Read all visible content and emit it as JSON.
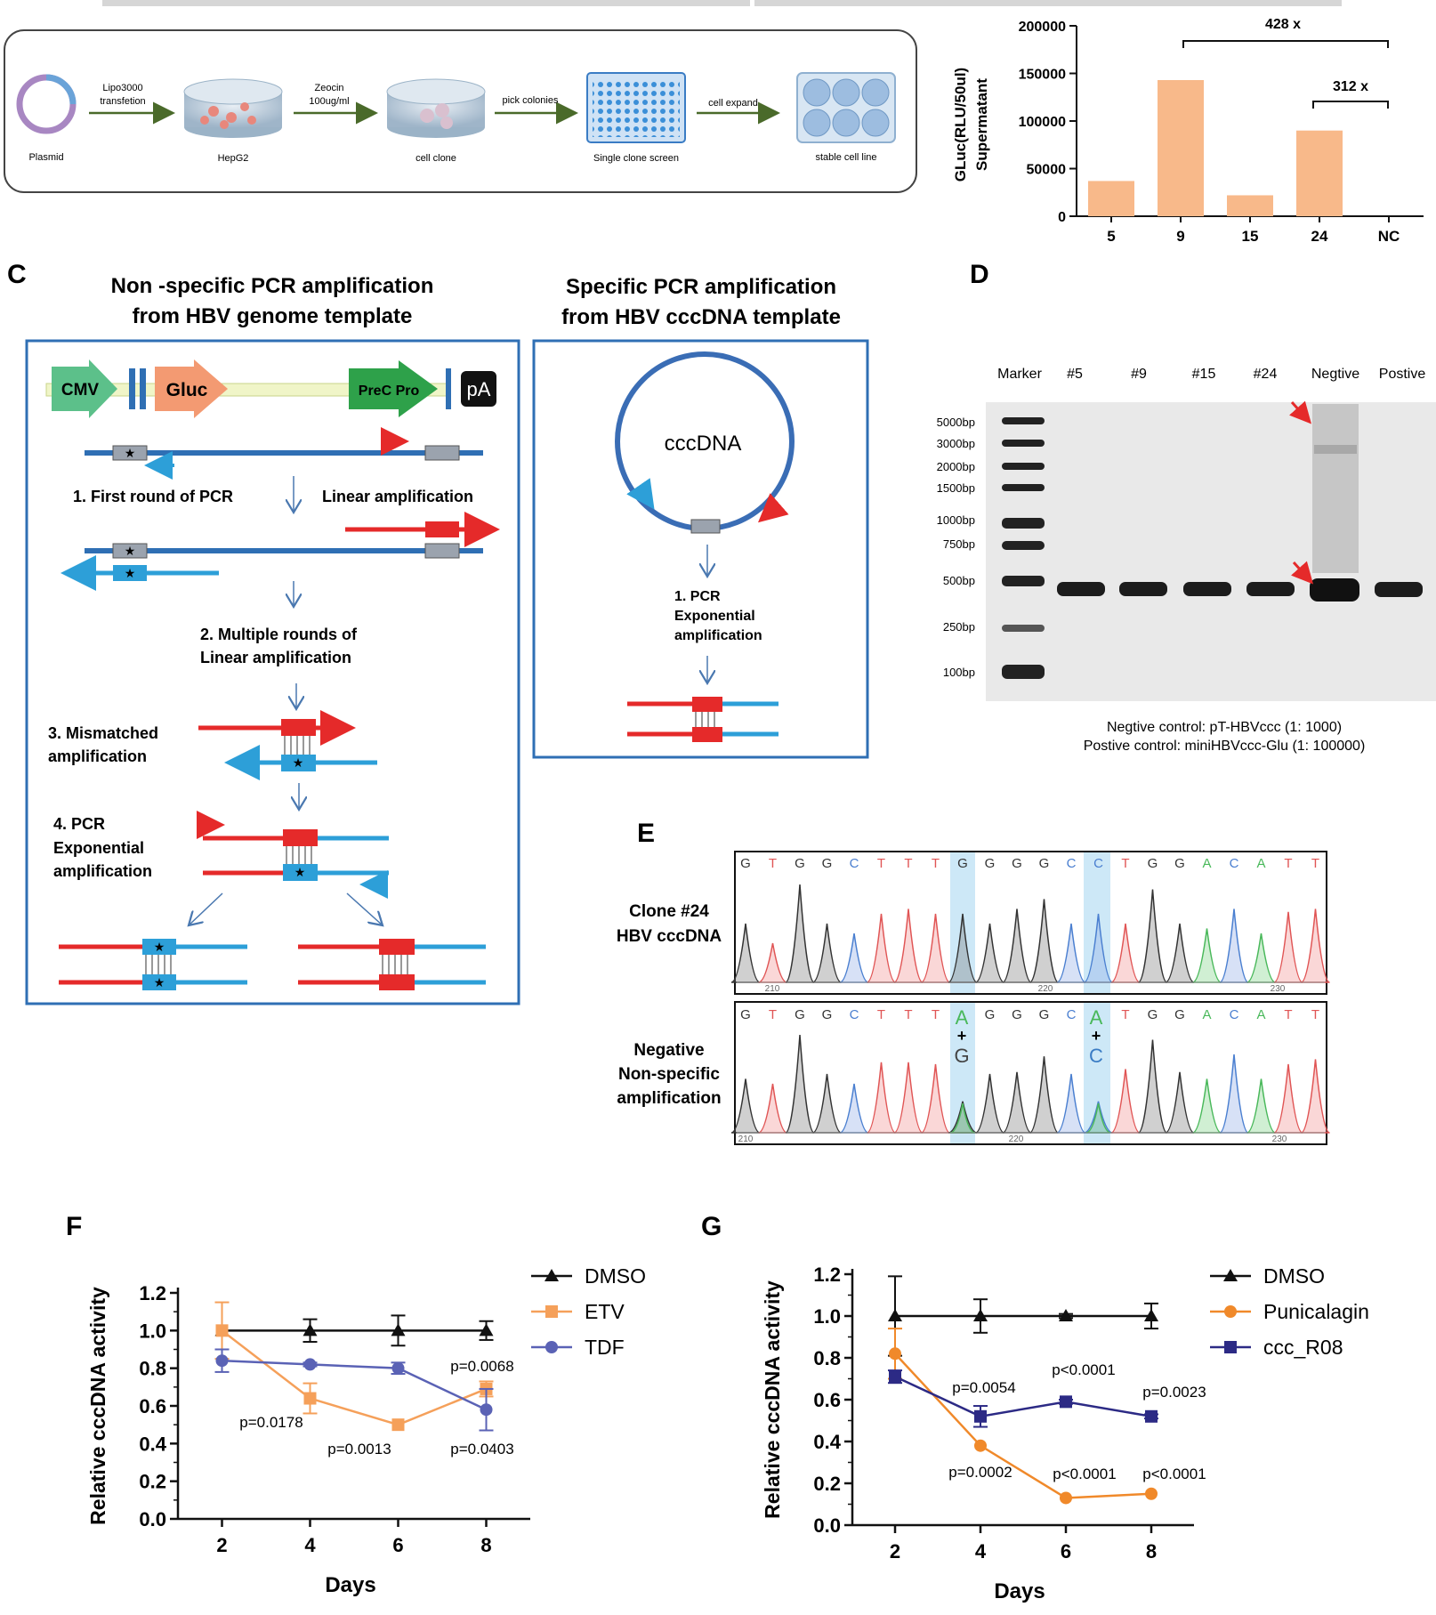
{
  "panel_letters": {
    "C": "C",
    "D": "D",
    "E": "E",
    "F": "F",
    "G": "G"
  },
  "workflow": {
    "steps": [
      "Plasmid",
      "HepG2",
      "cell clone",
      "Single clone screen",
      "stable cell line"
    ],
    "arrows": [
      {
        "line1": "Lipo3000",
        "line2": "transfetion"
      },
      {
        "line1": "Zeocin",
        "line2": "100ug/ml"
      },
      {
        "line1": "pick colonies",
        "line2": ""
      },
      {
        "line1": "cell expand",
        "line2": ""
      }
    ]
  },
  "bar_panel": {
    "ylabel_line1": "GLuc(RLU/50ul)",
    "ylabel_line2": "Supermatant",
    "fold_1": "428 x",
    "fold_2": "312 x"
  },
  "panel_c": {
    "left_title_1": "Non -specific PCR amplification",
    "left_title_2": "from HBV genome template",
    "right_title_1": "Specific PCR amplification",
    "right_title_2": "from HBV cccDNA template",
    "cmv": "CMV",
    "gluc": "Gluc",
    "precpro": "PreC Pro",
    "pa": "pA",
    "step1": "1. First round of PCR",
    "linear": "Linear amplification",
    "step2_1": "2. Multiple rounds of",
    "step2_2": "Linear amplification",
    "step3_1": "3. Mismatched",
    "step3_2": "amplification",
    "step4_1": "4. PCR",
    "step4_2": "Exponential",
    "step4_3": "amplification",
    "cccdna": "cccDNA",
    "r_step_1": "1. PCR",
    "r_step_2": "Exponential",
    "r_step_3": "amplification"
  },
  "panel_d": {
    "lanes": [
      "Marker",
      "#5",
      "#9",
      "#15",
      "#24",
      "Negtive",
      "Postive"
    ],
    "ladder": [
      "5000bp",
      "3000bp",
      "2000bp",
      "1500bp",
      "1000bp",
      "750bp",
      "500bp",
      "250bp",
      "100bp"
    ],
    "caption_1": "Negtive control: pT-HBVccc (1: 1000)",
    "caption_2": "Postive control: miniHBVccc-Glu (1: 100000)"
  },
  "panel_e": {
    "seq": [
      "G",
      "T",
      "G",
      "G",
      "C",
      "T",
      "T",
      "T",
      "G",
      "G",
      "G",
      "G",
      "C",
      "C",
      "T",
      "G",
      "G",
      "A",
      "C",
      "A",
      "T",
      "T"
    ],
    "clone_1": "Clone #24",
    "clone_2": "HBV cccDNA",
    "neg_1": "Negative",
    "neg_2": "Non-specific",
    "neg_3": "amplification",
    "pos_210": "210",
    "pos_220": "220",
    "pos_230": "230",
    "mix1_top": "A",
    "mix1_plus": "+",
    "mix1_bot": "G",
    "mix2_top": "A",
    "mix2_plus": "+",
    "mix2_bot": "C"
  },
  "chart_data": [
    {
      "type": "bar",
      "categories": [
        "5",
        "9",
        "15",
        "24",
        "NC"
      ],
      "values": [
        37000,
        143000,
        22000,
        90000,
        0
      ],
      "ylabel": "GLuc(RLU/50ul) Supermatant",
      "ylim": [
        0,
        200000
      ],
      "yticks": [
        "0",
        "50000",
        "100000",
        "150000",
        "200000"
      ],
      "color": "#f8b98a",
      "annotations": [
        "428 x",
        "312 x"
      ]
    },
    {
      "type": "line",
      "xlabel": "Days",
      "ylabel": "Relative cccDNA activity",
      "x": [
        2,
        4,
        6,
        8
      ],
      "ylim": [
        0,
        1.2
      ],
      "yticks": [
        "0.0",
        "0.2",
        "0.4",
        "0.6",
        "0.8",
        "1.0",
        "1.2"
      ],
      "xticks": [
        "2",
        "4",
        "6",
        "8"
      ],
      "legend_position": "top-right",
      "series": [
        {
          "name": "DMSO",
          "values": [
            1.0,
            1.0,
            1.0,
            1.0
          ],
          "err": [
            0,
            0.06,
            0.08,
            0.05
          ],
          "color": "#111111",
          "marker": "triangle"
        },
        {
          "name": "ETV",
          "values": [
            1.0,
            0.64,
            0.5,
            0.69
          ],
          "err": [
            0.15,
            0.08,
            0,
            0.04
          ],
          "color": "#f5a05a",
          "marker": "square"
        },
        {
          "name": "TDF",
          "values": [
            0.84,
            0.82,
            0.8,
            0.58
          ],
          "err": [
            0.06,
            0.01,
            0.03,
            0.11
          ],
          "color": "#5a62b5",
          "marker": "circle"
        }
      ],
      "annotations": [
        "p=0.0178",
        "p=0.0013",
        "p=0.0068",
        "p=0.0403"
      ]
    },
    {
      "type": "line",
      "xlabel": "Days",
      "ylabel": "Relative cccDNA activity",
      "x": [
        2,
        4,
        6,
        8
      ],
      "ylim": [
        0,
        1.2
      ],
      "yticks": [
        "0.0",
        "0.2",
        "0.4",
        "0.6",
        "0.8",
        "1.0",
        "1.2"
      ],
      "xticks": [
        "2",
        "4",
        "6",
        "8"
      ],
      "legend_position": "top-right",
      "series": [
        {
          "name": "DMSO",
          "values": [
            1.0,
            1.0,
            1.0,
            1.0
          ],
          "err": [
            0.19,
            0.08,
            0.01,
            0.06
          ],
          "color": "#111111",
          "marker": "triangle"
        },
        {
          "name": "Punicalagin",
          "values": [
            0.82,
            0.38,
            0.13,
            0.15
          ],
          "err": [
            0.12,
            0,
            0,
            0
          ],
          "color": "#f0892a",
          "marker": "circle"
        },
        {
          "name": "ccc_R08",
          "values": [
            0.71,
            0.52,
            0.59,
            0.52
          ],
          "err": [
            0.03,
            0.05,
            0.01,
            0.01
          ],
          "color": "#2c2a85",
          "marker": "square"
        }
      ],
      "annotations": [
        "p=0.0054",
        "p<0.0001",
        "p=0.0023",
        "p=0.0002",
        "p<0.0001",
        "p<0.0001"
      ]
    }
  ]
}
